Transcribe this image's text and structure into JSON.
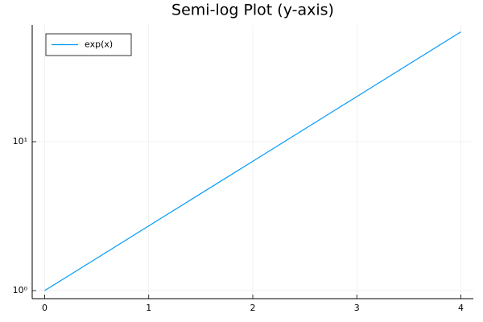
{
  "chart_data": {
    "type": "line",
    "title": "Semi-log Plot (y-axis)",
    "x": [
      0,
      1,
      2,
      3,
      4
    ],
    "series": [
      {
        "name": "exp(x)",
        "color": "#009af9",
        "values": [
          1,
          2.718,
          7.389,
          20.09,
          54.6
        ]
      }
    ],
    "xlim": [
      -0.12,
      4.12
    ],
    "xticks": [
      0,
      1,
      2,
      3,
      4
    ],
    "ylim": [
      0.883,
      60.8
    ],
    "yscale": "log",
    "yticks": [
      {
        "value": 1,
        "label": "10⁰"
      },
      {
        "value": 10,
        "label": "10¹"
      }
    ],
    "grid": true,
    "legend": "top-left"
  }
}
